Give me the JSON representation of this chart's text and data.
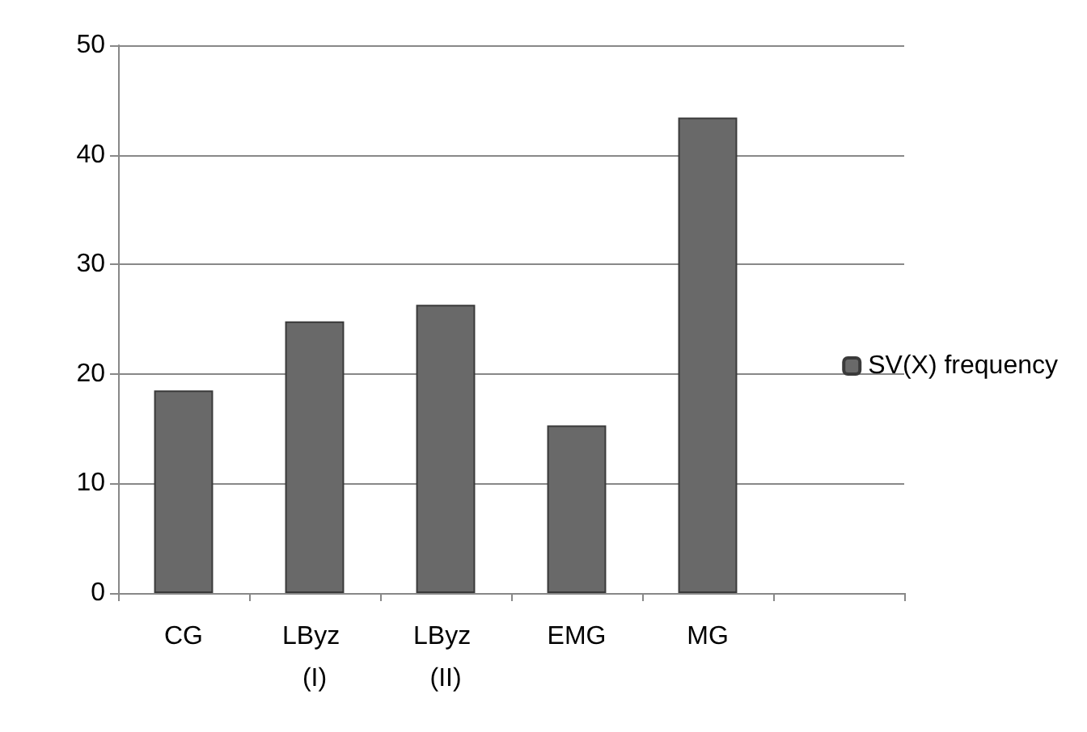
{
  "chart_data": {
    "type": "bar",
    "categories": [
      "CG",
      "LByz (I)",
      "LByz (II)",
      "EMG",
      "MG",
      null
    ],
    "series": [
      {
        "name": "SV(X) frequency",
        "color": "#696969",
        "values": [
          18.5,
          24.8,
          26.3,
          15.3,
          43.4,
          null
        ]
      }
    ],
    "ylim": [
      0,
      50
    ],
    "yticks": [
      0,
      10,
      20,
      30,
      40,
      50
    ],
    "grid": "y",
    "legend": "right"
  }
}
